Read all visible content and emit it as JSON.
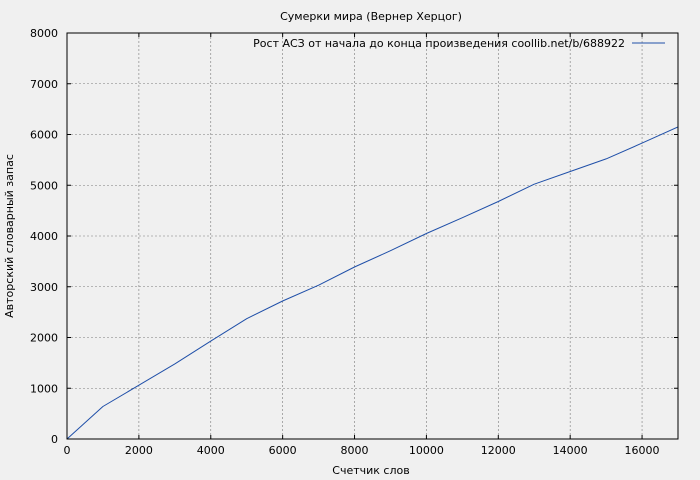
{
  "chart_data": {
    "type": "line",
    "title": "Сумерки мира (Вернер Херцог)",
    "xlabel": "Счетчик слов",
    "ylabel": "Авторский словарный запас",
    "xlim": [
      0,
      17000
    ],
    "ylim": [
      0,
      8000
    ],
    "xticks": [
      0,
      2000,
      4000,
      6000,
      8000,
      10000,
      12000,
      14000,
      16000
    ],
    "yticks": [
      0,
      1000,
      2000,
      3000,
      4000,
      5000,
      6000,
      7000,
      8000
    ],
    "grid": true,
    "legend_position": "top-right",
    "series": [
      {
        "name": "Рост АСЗ от начала до конца произведения coollib.net/b/688922",
        "color": "#1f4fa8",
        "x": [
          0,
          1000,
          2000,
          3000,
          4000,
          5000,
          6000,
          7000,
          8000,
          9000,
          10000,
          11000,
          12000,
          13000,
          14000,
          15000,
          16000,
          17000
        ],
        "y": [
          0,
          640,
          1060,
          1480,
          1930,
          2370,
          2720,
          3030,
          3390,
          3710,
          4050,
          4360,
          4680,
          5020,
          5270,
          5520,
          5830,
          6150
        ]
      }
    ]
  }
}
